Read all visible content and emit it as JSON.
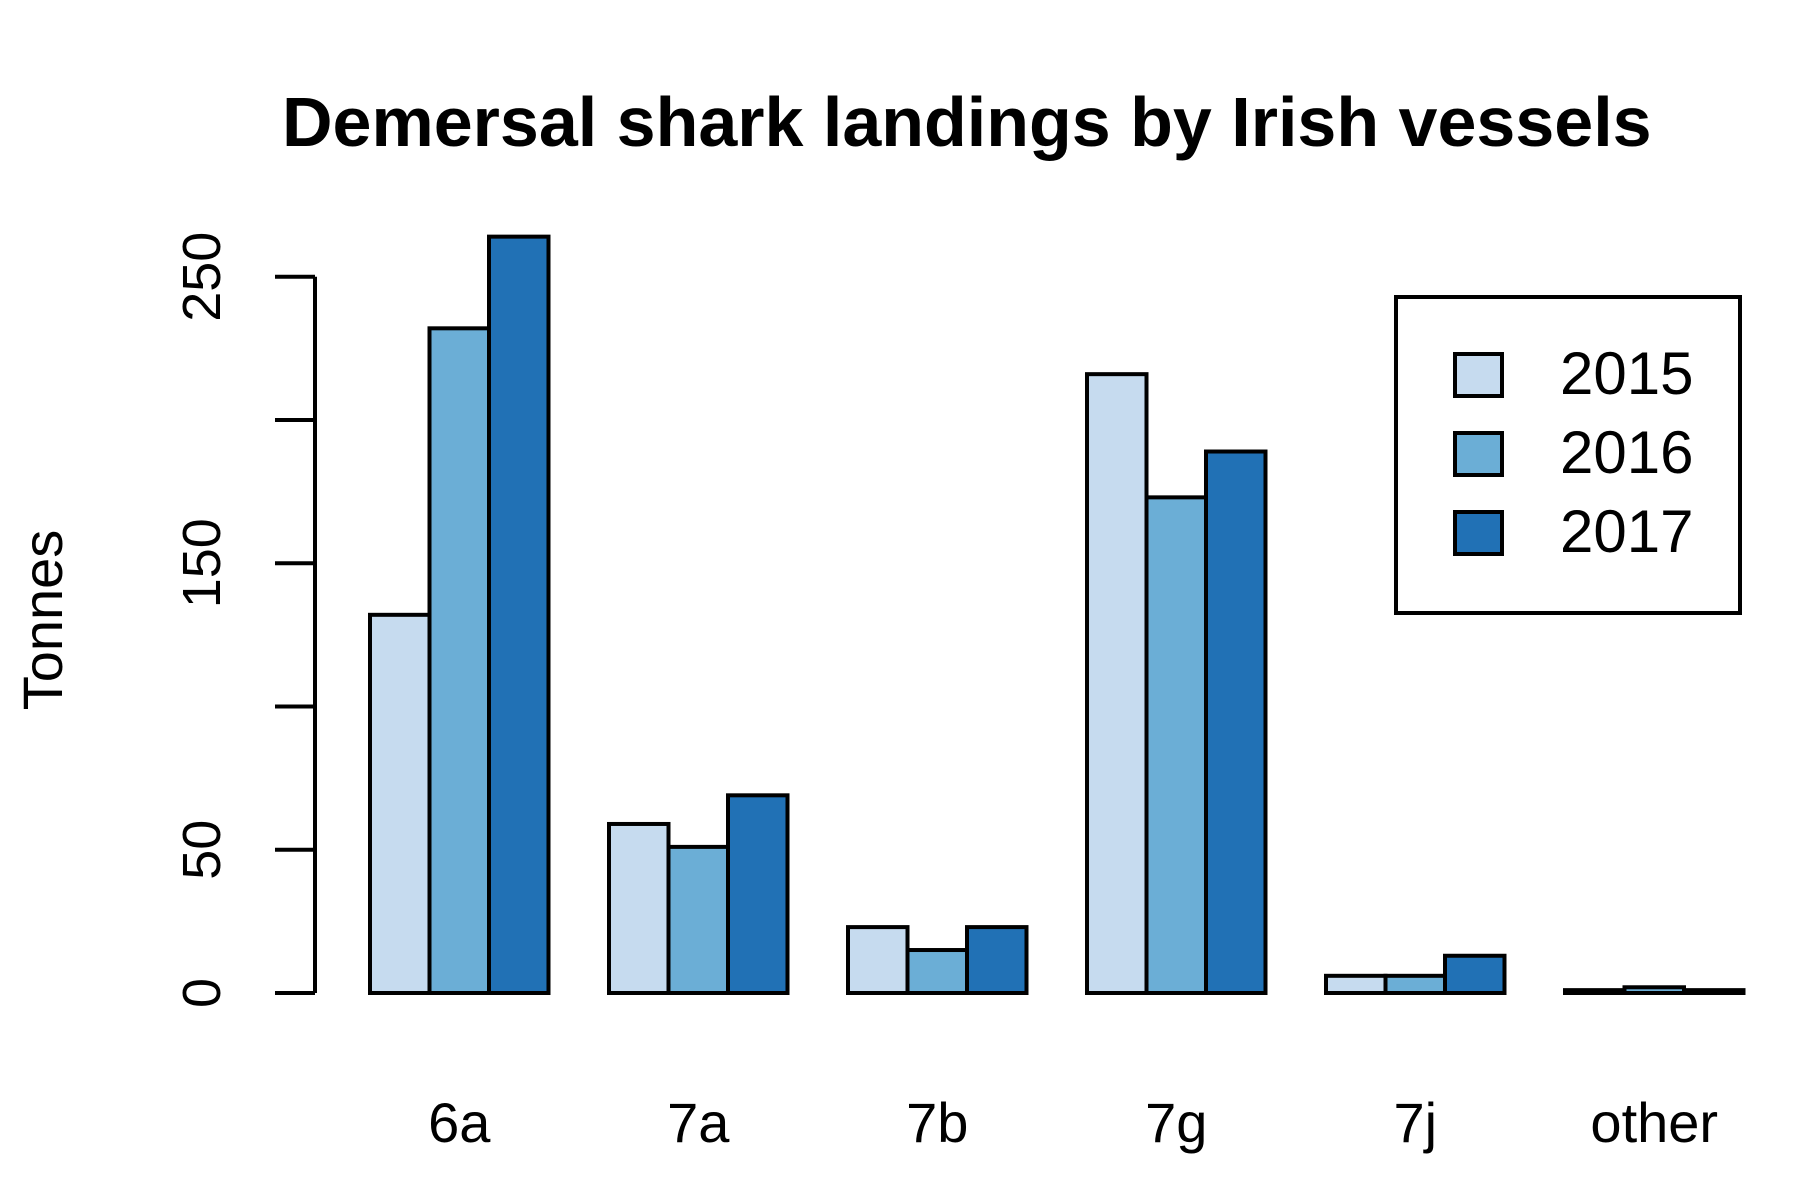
{
  "chart_data": {
    "type": "bar",
    "title": "Demersal shark landings by Irish vessels",
    "xlabel": "",
    "ylabel": "Tonnes",
    "categories": [
      "6a",
      "7a",
      "7b",
      "7g",
      "7j",
      "other"
    ],
    "series": [
      {
        "name": "2015",
        "color": "#c6dbef",
        "values": [
          132,
          59,
          23,
          216,
          6,
          1
        ]
      },
      {
        "name": "2016",
        "color": "#6baed6",
        "values": [
          232,
          51,
          15,
          173,
          6,
          2
        ]
      },
      {
        "name": "2017",
        "color": "#2171b5",
        "values": [
          264,
          69,
          23,
          189,
          13,
          1
        ]
      }
    ],
    "ylim": [
      0,
      264
    ],
    "yticks": [
      0,
      50,
      100,
      150,
      200,
      250
    ],
    "ytick_labels": [
      "0",
      "50",
      "",
      "150",
      "",
      "250"
    ],
    "grid": false,
    "legend_position": "top-right"
  }
}
